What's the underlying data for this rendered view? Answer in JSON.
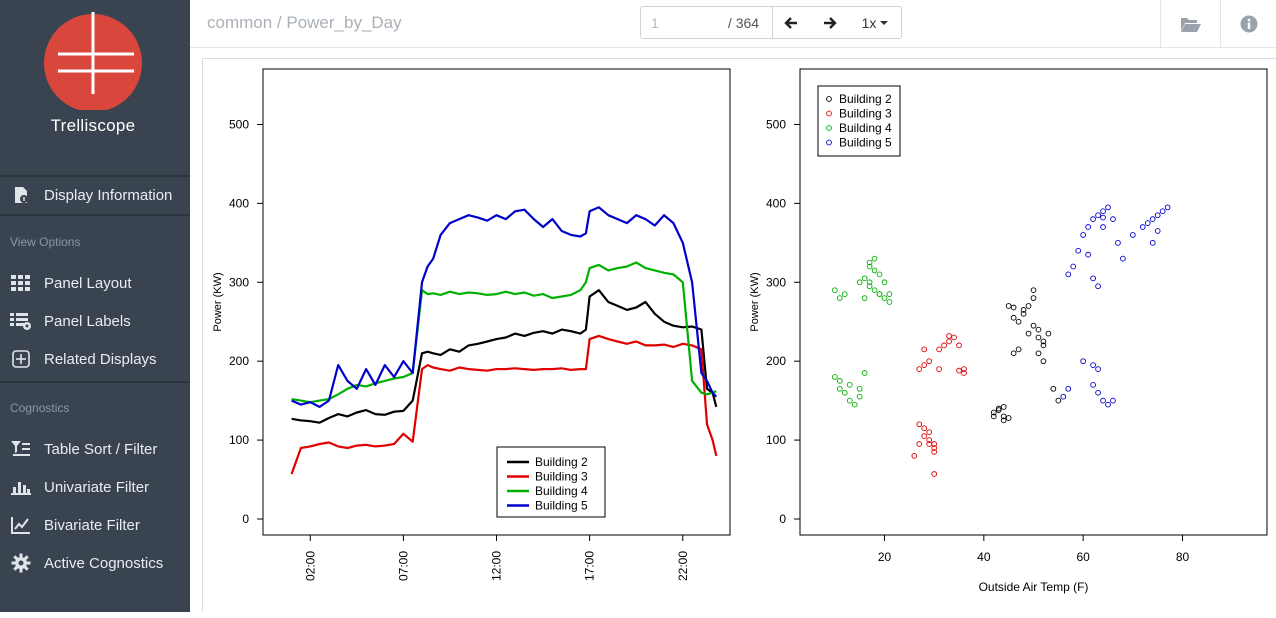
{
  "app": {
    "title": "Trelliscope"
  },
  "sidebar": {
    "display_info": "Display Information",
    "view_options_header": "View Options",
    "view_items": [
      {
        "label": "Panel Layout",
        "icon": "grid-icon"
      },
      {
        "label": "Panel Labels",
        "icon": "list-gear-icon"
      },
      {
        "label": "Related Displays",
        "icon": "plus-square-icon"
      }
    ],
    "cognostics_header": "Cognostics",
    "cog_items": [
      {
        "label": "Table Sort / Filter",
        "icon": "table-filter-icon"
      },
      {
        "label": "Univariate Filter",
        "icon": "bar-chart-icon"
      },
      {
        "label": "Bivariate Filter",
        "icon": "line-chart-icon"
      },
      {
        "label": "Active Cognostics",
        "icon": "gear-icon"
      }
    ]
  },
  "header": {
    "breadcrumb": "common / Power_by_Day",
    "page_value": "1",
    "page_total": "/ 364",
    "zoom": "1x"
  },
  "colors": {
    "sidebar_bg": "#3a4450",
    "logo_red": "#d9473c",
    "building_2": "#000000",
    "building_3": "#e00000",
    "building_4": "#00b000",
    "building_5": "#0000cc"
  },
  "chart_data": [
    {
      "type": "line",
      "title": "",
      "xlabel": "",
      "ylabel": "Power (KW)",
      "ylim": [
        0,
        550
      ],
      "yticks": [
        0,
        100,
        200,
        300,
        400,
        500
      ],
      "x_tick_labels": [
        "02:00",
        "07:00",
        "12:00",
        "17:00",
        "22:00"
      ],
      "x_tick_hours": [
        2,
        7,
        12,
        17,
        22
      ],
      "xlim": [
        0,
        24
      ],
      "legend": {
        "position": "bottom-center",
        "entries": [
          "Building 2",
          "Building 3",
          "Building 4",
          "Building 5"
        ]
      },
      "series": [
        {
          "name": "Building 2",
          "color": "#000000",
          "x": [
            1.0,
            1.5,
            2.0,
            2.5,
            3.0,
            3.5,
            4.0,
            4.5,
            5.0,
            5.5,
            6.0,
            6.5,
            7.0,
            7.5,
            8.0,
            8.3,
            8.6,
            9.0,
            9.5,
            10.0,
            10.5,
            11.0,
            11.5,
            12.0,
            12.5,
            13.0,
            13.5,
            14.0,
            14.5,
            15.0,
            15.5,
            16.0,
            16.5,
            16.8,
            17.0,
            17.5,
            18.0,
            18.5,
            19.0,
            19.5,
            20.0,
            20.5,
            21.0,
            21.5,
            22.0,
            22.5,
            23.0,
            23.3,
            23.6,
            23.8
          ],
          "y": [
            127,
            125,
            124,
            122,
            128,
            133,
            130,
            135,
            138,
            133,
            132,
            136,
            137,
            150,
            210,
            212,
            210,
            208,
            215,
            212,
            220,
            222,
            225,
            228,
            230,
            235,
            232,
            236,
            238,
            235,
            240,
            238,
            235,
            240,
            282,
            290,
            275,
            270,
            265,
            268,
            275,
            260,
            250,
            245,
            243,
            244,
            240,
            165,
            160,
            142
          ]
        },
        {
          "name": "Building 3",
          "color": "#e00000",
          "x": [
            1.0,
            1.5,
            2.0,
            2.5,
            3.0,
            3.5,
            4.0,
            4.5,
            5.0,
            5.5,
            6.0,
            6.5,
            7.0,
            7.5,
            8.0,
            8.3,
            8.6,
            9.0,
            9.5,
            10.0,
            10.5,
            11.0,
            11.5,
            12.0,
            12.5,
            13.0,
            13.5,
            14.0,
            14.5,
            15.0,
            15.5,
            16.0,
            16.5,
            16.8,
            17.0,
            17.5,
            18.0,
            18.5,
            19.0,
            19.5,
            20.0,
            20.5,
            21.0,
            21.5,
            22.0,
            22.5,
            23.0,
            23.3,
            23.6,
            23.8
          ],
          "y": [
            57,
            90,
            92,
            95,
            97,
            92,
            90,
            93,
            94,
            92,
            93,
            95,
            108,
            98,
            190,
            195,
            192,
            190,
            188,
            192,
            190,
            189,
            188,
            190,
            190,
            191,
            190,
            189,
            190,
            190,
            191,
            189,
            190,
            190,
            228,
            232,
            228,
            225,
            222,
            225,
            220,
            220,
            221,
            218,
            222,
            220,
            215,
            120,
            100,
            80
          ]
        },
        {
          "name": "Building 4",
          "color": "#00b000",
          "x": [
            1.0,
            1.5,
            2.0,
            2.5,
            3.0,
            3.5,
            4.0,
            4.5,
            5.0,
            5.5,
            6.0,
            6.5,
            7.0,
            7.5,
            8.0,
            8.3,
            8.6,
            9.0,
            9.5,
            10.0,
            10.5,
            11.0,
            11.5,
            12.0,
            12.5,
            13.0,
            13.5,
            14.0,
            14.5,
            15.0,
            15.5,
            16.0,
            16.5,
            16.8,
            17.0,
            17.5,
            18.0,
            18.5,
            19.0,
            19.5,
            20.0,
            20.5,
            21.0,
            21.5,
            22.0,
            22.5,
            23.0,
            23.3,
            23.6,
            23.8
          ],
          "y": [
            152,
            150,
            148,
            150,
            152,
            158,
            165,
            170,
            168,
            172,
            175,
            178,
            180,
            185,
            290,
            285,
            286,
            284,
            288,
            285,
            287,
            286,
            284,
            285,
            288,
            285,
            287,
            283,
            285,
            280,
            282,
            284,
            290,
            300,
            318,
            322,
            315,
            318,
            320,
            325,
            318,
            315,
            312,
            310,
            300,
            175,
            160,
            158,
            160,
            162
          ]
        },
        {
          "name": "Building 5",
          "color": "#0000cc",
          "x": [
            1.0,
            1.5,
            2.0,
            2.5,
            3.0,
            3.5,
            4.0,
            4.5,
            5.0,
            5.5,
            6.0,
            6.5,
            7.0,
            7.5,
            8.0,
            8.3,
            8.6,
            9.0,
            9.5,
            10.0,
            10.5,
            11.0,
            11.5,
            12.0,
            12.5,
            13.0,
            13.5,
            14.0,
            14.5,
            15.0,
            15.5,
            16.0,
            16.5,
            16.8,
            17.0,
            17.5,
            18.0,
            18.5,
            19.0,
            19.5,
            20.0,
            20.5,
            21.0,
            21.5,
            22.0,
            22.5,
            23.0,
            23.3,
            23.6,
            23.8
          ],
          "y": [
            150,
            145,
            148,
            142,
            150,
            195,
            175,
            165,
            190,
            170,
            195,
            180,
            200,
            185,
            300,
            320,
            330,
            360,
            375,
            380,
            385,
            382,
            378,
            385,
            380,
            390,
            392,
            380,
            370,
            380,
            365,
            360,
            358,
            362,
            390,
            395,
            385,
            380,
            375,
            385,
            380,
            372,
            385,
            375,
            350,
            300,
            185,
            175,
            160,
            155
          ]
        }
      ]
    },
    {
      "type": "scatter",
      "title": "",
      "xlabel": "Outside Air Temp (F)",
      "ylabel": "Power (KW)",
      "xlim": [
        5,
        95
      ],
      "ylim": [
        0,
        550
      ],
      "xticks": [
        20,
        40,
        60,
        80
      ],
      "yticks": [
        0,
        100,
        200,
        300,
        400,
        500
      ],
      "legend": {
        "position": "top-left",
        "entries": [
          "Building 2",
          "Building 3",
          "Building 4",
          "Building 5"
        ]
      },
      "series": [
        {
          "name": "Building 2",
          "color": "#000000",
          "x": [
            42,
            43,
            44,
            45,
            44,
            43,
            46,
            47,
            47,
            48,
            49,
            50,
            50,
            51,
            51,
            52,
            52,
            53,
            54,
            55,
            45,
            46,
            50,
            49,
            48,
            46,
            42,
            44,
            51,
            52
          ],
          "y": [
            135,
            138,
            130,
            128,
            125,
            140,
            210,
            215,
            250,
            260,
            270,
            280,
            290,
            240,
            230,
            225,
            220,
            235,
            165,
            150,
            270,
            255,
            245,
            235,
            265,
            268,
            130,
            142,
            210,
            200
          ]
        },
        {
          "name": "Building 3",
          "color": "#e00000",
          "x": [
            26,
            27,
            28,
            29,
            30,
            29,
            28,
            27,
            30,
            31,
            32,
            33,
            34,
            35,
            36,
            27,
            28,
            29,
            30,
            29,
            28,
            31,
            33,
            35,
            36,
            30
          ],
          "y": [
            80,
            95,
            105,
            110,
            90,
            100,
            195,
            190,
            85,
            215,
            220,
            225,
            230,
            220,
            190,
            120,
            115,
            200,
            95,
            95,
            215,
            190,
            232,
            188,
            185,
            57
          ]
        },
        {
          "name": "Building 4",
          "color": "#00b000",
          "x": [
            10,
            11,
            12,
            13,
            14,
            15,
            16,
            17,
            18,
            19,
            20,
            21,
            10,
            11,
            12,
            16,
            17,
            18,
            19,
            20,
            21,
            11,
            13,
            15,
            16,
            17,
            18,
            15,
            17,
            19
          ],
          "y": [
            180,
            175,
            160,
            150,
            145,
            165,
            185,
            320,
            315,
            310,
            300,
            285,
            290,
            280,
            285,
            305,
            300,
            290,
            285,
            280,
            275,
            165,
            170,
            155,
            280,
            325,
            330,
            300,
            295,
            285
          ]
        },
        {
          "name": "Building 5",
          "color": "#0000cc",
          "x": [
            57,
            58,
            59,
            60,
            61,
            62,
            63,
            64,
            65,
            66,
            67,
            68,
            70,
            72,
            73,
            74,
            75,
            76,
            77,
            62,
            63,
            64,
            60,
            62,
            63,
            56,
            57,
            65,
            66,
            62,
            63,
            61,
            64,
            74,
            75,
            64
          ],
          "y": [
            310,
            320,
            340,
            360,
            370,
            380,
            385,
            390,
            395,
            380,
            350,
            330,
            360,
            370,
            375,
            380,
            385,
            390,
            395,
            170,
            160,
            150,
            200,
            195,
            190,
            155,
            165,
            145,
            150,
            305,
            295,
            335,
            382,
            350,
            365,
            370
          ]
        }
      ]
    }
  ]
}
